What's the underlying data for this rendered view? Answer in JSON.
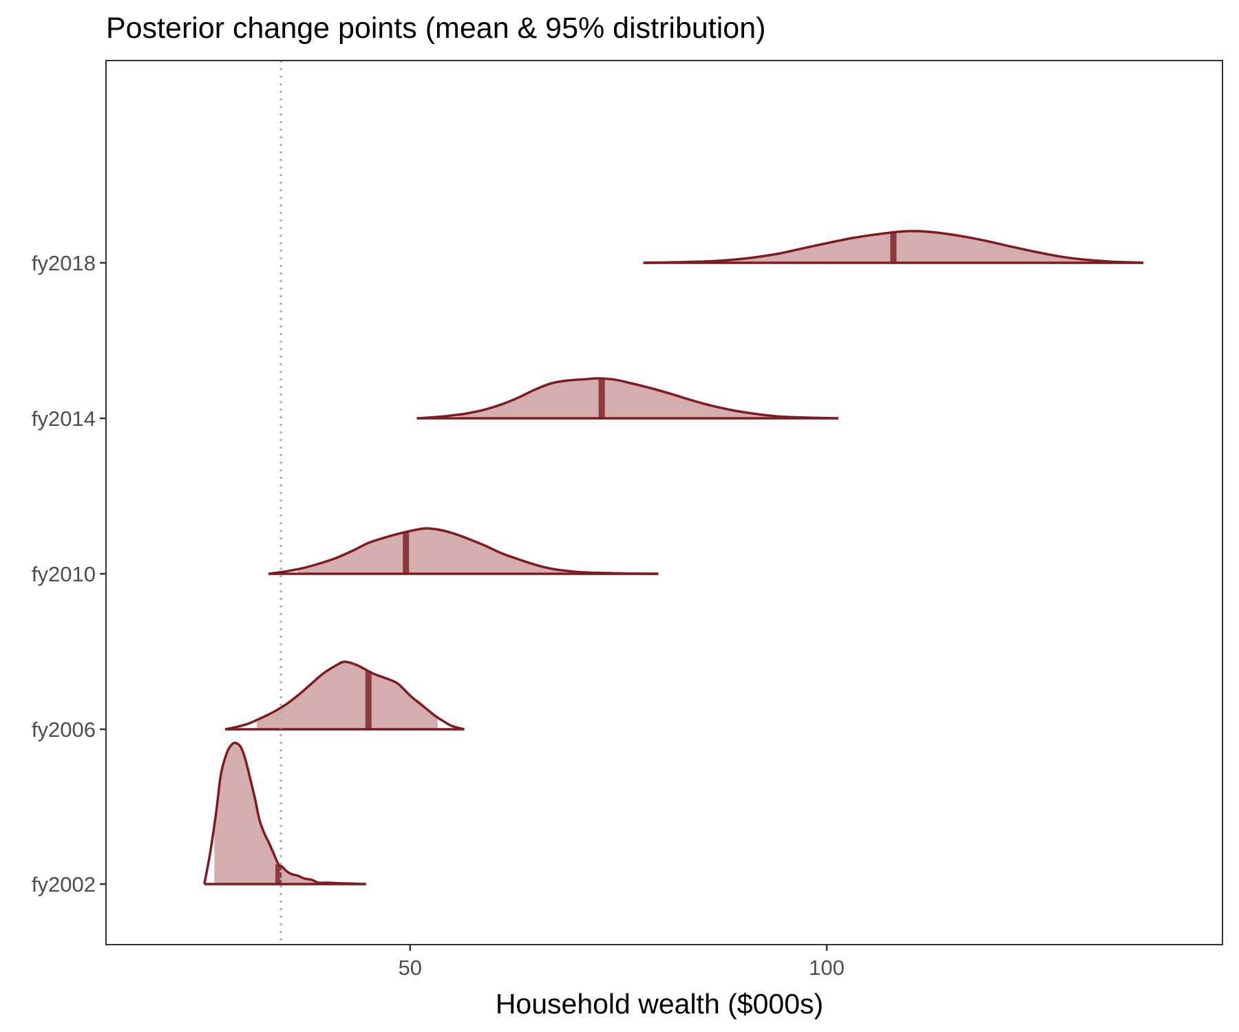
{
  "chart_data": {
    "type": "ridgeline-density",
    "title": "Posterior change points (mean & 95% distribution)",
    "xlabel": "Household wealth ($000s)",
    "ylabel": "",
    "xlim": [
      13.5,
      147.5
    ],
    "x_ticks": [
      50,
      100
    ],
    "grid": false,
    "reference_line": {
      "x": 34.5,
      "style": "dotted",
      "color": "#b3b3b3"
    },
    "colors": {
      "outline": "#7f1a1f",
      "fill": "#d4adae",
      "mean_line": "#8b3a3e"
    },
    "series": [
      {
        "name": "fy2002",
        "mean": 34.2,
        "ci95": [
          26.5,
          38.8
        ],
        "range": [
          25.3,
          44.7
        ],
        "density": [
          [
            25.3,
            0.0
          ],
          [
            26.0,
            0.22
          ],
          [
            26.7,
            0.5
          ],
          [
            27.3,
            0.78
          ],
          [
            28.0,
            0.93
          ],
          [
            28.6,
            0.99
          ],
          [
            29.1,
            1.0
          ],
          [
            29.7,
            0.97
          ],
          [
            30.2,
            0.89
          ],
          [
            30.8,
            0.75
          ],
          [
            31.4,
            0.6
          ],
          [
            31.9,
            0.46
          ],
          [
            32.5,
            0.36
          ],
          [
            33.0,
            0.3
          ],
          [
            33.6,
            0.22
          ],
          [
            34.2,
            0.14
          ],
          [
            34.7,
            0.12
          ],
          [
            35.2,
            0.09
          ],
          [
            35.8,
            0.07
          ],
          [
            36.5,
            0.06
          ],
          [
            37.3,
            0.04
          ],
          [
            38.2,
            0.03
          ],
          [
            39.0,
            0.01
          ],
          [
            40.0,
            0.01
          ],
          [
            42.0,
            0.005
          ],
          [
            44.7,
            0.0
          ]
        ]
      },
      {
        "name": "fy2006",
        "mean": 45.0,
        "ci95": [
          31.6,
          53.3
        ],
        "range": [
          27.8,
          56.5
        ],
        "density": [
          [
            27.8,
            0.0
          ],
          [
            29.0,
            0.03
          ],
          [
            30.5,
            0.08
          ],
          [
            32.0,
            0.16
          ],
          [
            33.5,
            0.25
          ],
          [
            35.0,
            0.36
          ],
          [
            36.5,
            0.5
          ],
          [
            38.0,
            0.66
          ],
          [
            39.5,
            0.82
          ],
          [
            41.0,
            0.94
          ],
          [
            42.0,
            1.0
          ],
          [
            43.0,
            0.98
          ],
          [
            44.0,
            0.93
          ],
          [
            45.5,
            0.83
          ],
          [
            47.0,
            0.76
          ],
          [
            48.5,
            0.68
          ],
          [
            50.0,
            0.5
          ],
          [
            51.5,
            0.35
          ],
          [
            53.0,
            0.2
          ],
          [
            54.0,
            0.12
          ],
          [
            55.0,
            0.05
          ],
          [
            56.5,
            0.0
          ]
        ]
      },
      {
        "name": "fy2010",
        "mean": 49.5,
        "ci95": [
          36.5,
          70.5
        ],
        "range": [
          33.0,
          79.8
        ],
        "density": [
          [
            33.0,
            0.0
          ],
          [
            35.0,
            0.05
          ],
          [
            37.0,
            0.12
          ],
          [
            39.0,
            0.22
          ],
          [
            41.0,
            0.34
          ],
          [
            43.0,
            0.5
          ],
          [
            45.0,
            0.68
          ],
          [
            47.0,
            0.8
          ],
          [
            49.0,
            0.9
          ],
          [
            51.0,
            0.98
          ],
          [
            52.0,
            1.0
          ],
          [
            53.5,
            0.97
          ],
          [
            55.0,
            0.9
          ],
          [
            57.0,
            0.77
          ],
          [
            59.0,
            0.62
          ],
          [
            61.0,
            0.45
          ],
          [
            63.0,
            0.32
          ],
          [
            65.0,
            0.2
          ],
          [
            67.0,
            0.11
          ],
          [
            69.0,
            0.06
          ],
          [
            71.0,
            0.03
          ],
          [
            73.0,
            0.02
          ],
          [
            75.0,
            0.01
          ],
          [
            77.0,
            0.005
          ],
          [
            79.8,
            0.0
          ]
        ]
      },
      {
        "name": "fy2014",
        "mean": 73.0,
        "ci95": [
          55.8,
          93.0
        ],
        "range": [
          50.8,
          101.4
        ],
        "density": [
          [
            50.8,
            0.0
          ],
          [
            53.0,
            0.03
          ],
          [
            55.0,
            0.07
          ],
          [
            57.0,
            0.13
          ],
          [
            59.0,
            0.22
          ],
          [
            61.0,
            0.35
          ],
          [
            63.0,
            0.52
          ],
          [
            65.0,
            0.72
          ],
          [
            67.0,
            0.88
          ],
          [
            69.0,
            0.95
          ],
          [
            71.0,
            0.98
          ],
          [
            72.5,
            1.0
          ],
          [
            74.5,
            0.97
          ],
          [
            76.5,
            0.88
          ],
          [
            79.0,
            0.75
          ],
          [
            81.5,
            0.6
          ],
          [
            84.0,
            0.44
          ],
          [
            86.5,
            0.3
          ],
          [
            89.0,
            0.19
          ],
          [
            91.5,
            0.11
          ],
          [
            94.0,
            0.05
          ],
          [
            97.0,
            0.02
          ],
          [
            99.0,
            0.01
          ],
          [
            101.4,
            0.0
          ]
        ]
      },
      {
        "name": "fy2018",
        "mean": 108.0,
        "ci95": [
          82.5,
          136.0
        ],
        "range": [
          78.0,
          138.0
        ],
        "density": [
          [
            78.0,
            0.0
          ],
          [
            82.0,
            0.02
          ],
          [
            86.0,
            0.05
          ],
          [
            90.0,
            0.13
          ],
          [
            94.0,
            0.28
          ],
          [
            97.0,
            0.45
          ],
          [
            100.0,
            0.62
          ],
          [
            103.0,
            0.78
          ],
          [
            106.0,
            0.9
          ],
          [
            109.0,
            0.99
          ],
          [
            111.0,
            1.0
          ],
          [
            113.0,
            0.96
          ],
          [
            116.0,
            0.85
          ],
          [
            119.0,
            0.7
          ],
          [
            122.0,
            0.52
          ],
          [
            125.0,
            0.35
          ],
          [
            128.0,
            0.2
          ],
          [
            131.0,
            0.1
          ],
          [
            134.0,
            0.04
          ],
          [
            136.0,
            0.02
          ],
          [
            138.0,
            0.0
          ]
        ]
      }
    ]
  }
}
